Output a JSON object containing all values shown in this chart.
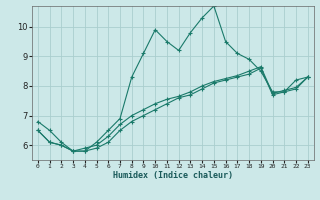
{
  "title": "",
  "xlabel": "Humidex (Indice chaleur)",
  "xlim": [
    -0.5,
    23.5
  ],
  "ylim": [
    5.5,
    10.7
  ],
  "yticks": [
    6,
    7,
    8,
    9,
    10
  ],
  "xticks": [
    0,
    1,
    2,
    3,
    4,
    5,
    6,
    7,
    8,
    9,
    10,
    11,
    12,
    13,
    14,
    15,
    16,
    17,
    18,
    19,
    20,
    21,
    22,
    23
  ],
  "bg_color": "#cce8e8",
  "line_color": "#1a7a6a",
  "grid_color": "#aacece",
  "figsize": [
    3.2,
    2.0
  ],
  "dpi": 100,
  "series": [
    [
      6.8,
      6.5,
      6.1,
      5.8,
      5.8,
      6.1,
      6.5,
      6.9,
      8.3,
      9.1,
      9.9,
      9.5,
      9.2,
      9.8,
      10.3,
      10.7,
      9.5,
      9.1,
      8.9,
      8.5,
      7.8,
      7.8,
      8.2,
      8.3
    ],
    [
      6.5,
      6.1,
      6.0,
      5.8,
      5.8,
      5.9,
      6.1,
      6.5,
      6.8,
      7.0,
      7.2,
      7.4,
      7.6,
      7.7,
      7.9,
      8.1,
      8.2,
      8.3,
      8.4,
      8.6,
      7.7,
      7.8,
      7.9,
      8.3
    ],
    [
      6.5,
      6.1,
      6.0,
      5.8,
      5.9,
      6.0,
      6.3,
      6.7,
      7.0,
      7.2,
      7.4,
      7.55,
      7.65,
      7.8,
      8.0,
      8.15,
      8.25,
      8.35,
      8.5,
      8.65,
      7.75,
      7.85,
      7.95,
      8.3
    ]
  ]
}
